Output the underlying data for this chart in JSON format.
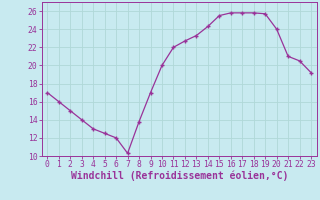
{
  "x": [
    0,
    1,
    2,
    3,
    4,
    5,
    6,
    7,
    8,
    9,
    10,
    11,
    12,
    13,
    14,
    15,
    16,
    17,
    18,
    19,
    20,
    21,
    22,
    23
  ],
  "y": [
    17,
    16,
    15,
    14,
    13,
    12.5,
    12,
    10.3,
    13.8,
    17,
    20,
    22,
    22.7,
    23.3,
    24.3,
    25.5,
    25.8,
    25.8,
    25.8,
    25.7,
    24,
    21,
    20.5,
    19.2
  ],
  "line_color": "#993399",
  "marker": "+",
  "marker_size": 3.5,
  "marker_lw": 1.0,
  "bg_color": "#c8eaf0",
  "grid_color": "#b0d8d8",
  "xlabel": "Windchill (Refroidissement éolien,°C)",
  "xlabel_color": "#993399",
  "ylim": [
    10,
    27
  ],
  "xlim": [
    -0.5,
    23.5
  ],
  "yticks": [
    10,
    12,
    14,
    16,
    18,
    20,
    22,
    24,
    26
  ],
  "xticks": [
    0,
    1,
    2,
    3,
    4,
    5,
    6,
    7,
    8,
    9,
    10,
    11,
    12,
    13,
    14,
    15,
    16,
    17,
    18,
    19,
    20,
    21,
    22,
    23
  ],
  "tick_label_fontsize": 5.8,
  "xlabel_fontsize": 7.0,
  "tick_color": "#993399",
  "spine_color": "#993399",
  "line_width": 0.9
}
